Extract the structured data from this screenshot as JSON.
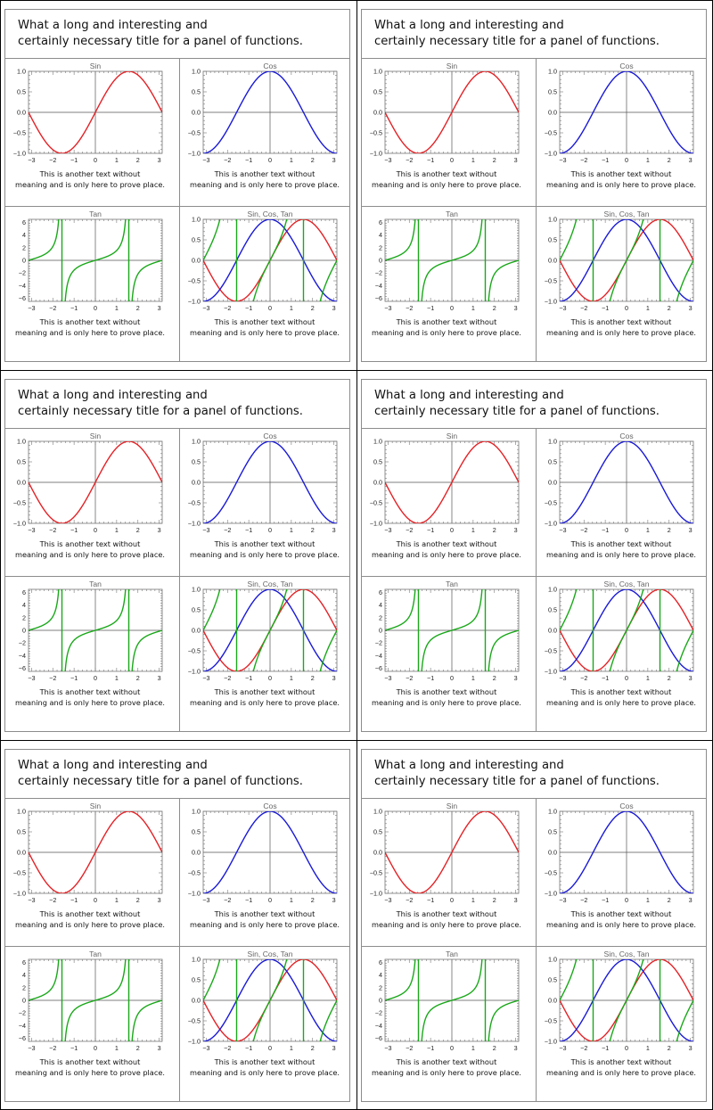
{
  "figure": {
    "title_lines": [
      "What a long and interesting and",
      "certainly necessary title for a panel of functions."
    ],
    "caption_lines": [
      "This is another text without",
      "meaning and is only here to prove place."
    ]
  },
  "colors": {
    "sin": "#e32226",
    "cos": "#1a1ad6",
    "tan": "#1aa81a",
    "axis": "#555555",
    "frame": "#8c8c8c"
  },
  "chart_data": [
    {
      "type": "line",
      "title": "Sin",
      "x_range": [
        -3.1416,
        3.1416
      ],
      "ylim": [
        -1.0,
        1.0
      ],
      "x_ticks": [
        "-3",
        "-2",
        "-1",
        "0",
        "1",
        "2",
        "3"
      ],
      "y_ticks": [
        "-1.0",
        "-0.5",
        "0.0",
        "0.5",
        "1.0"
      ],
      "series": [
        {
          "function": "sin(x)",
          "color": "#e32226"
        }
      ]
    },
    {
      "type": "line",
      "title": "Cos",
      "x_range": [
        -3.1416,
        3.1416
      ],
      "ylim": [
        -1.0,
        1.0
      ],
      "x_ticks": [
        "-3",
        "-2",
        "-1",
        "0",
        "1",
        "2",
        "3"
      ],
      "y_ticks": [
        "-1.0",
        "-0.5",
        "0.0",
        "0.5",
        "1.0"
      ],
      "series": [
        {
          "function": "cos(x)",
          "color": "#1a1ad6"
        }
      ]
    },
    {
      "type": "line",
      "title": "Tan",
      "x_range": [
        -3.1416,
        3.1416
      ],
      "ylim": [
        -6.5,
        6.5
      ],
      "x_ticks": [
        "-3",
        "-2",
        "-1",
        "0",
        "1",
        "2",
        "3"
      ],
      "y_ticks": [
        "-6",
        "-4",
        "-2",
        "0",
        "2",
        "4",
        "6"
      ],
      "series": [
        {
          "function": "tan(x)",
          "color": "#1aa81a"
        }
      ]
    },
    {
      "type": "line",
      "title": "Sin, Cos, Tan",
      "x_range": [
        -3.1416,
        3.1416
      ],
      "ylim": [
        -1.0,
        1.0
      ],
      "x_ticks": [
        "-3",
        "-2",
        "-1",
        "0",
        "1",
        "2",
        "3"
      ],
      "y_ticks": [
        "-1.0",
        "-0.5",
        "0.0",
        "0.5",
        "1.0"
      ],
      "series": [
        {
          "function": "sin(x)",
          "color": "#e32226"
        },
        {
          "function": "cos(x)",
          "color": "#1a1ad6"
        },
        {
          "function": "tan(x)",
          "color": "#1aa81a"
        }
      ]
    }
  ]
}
